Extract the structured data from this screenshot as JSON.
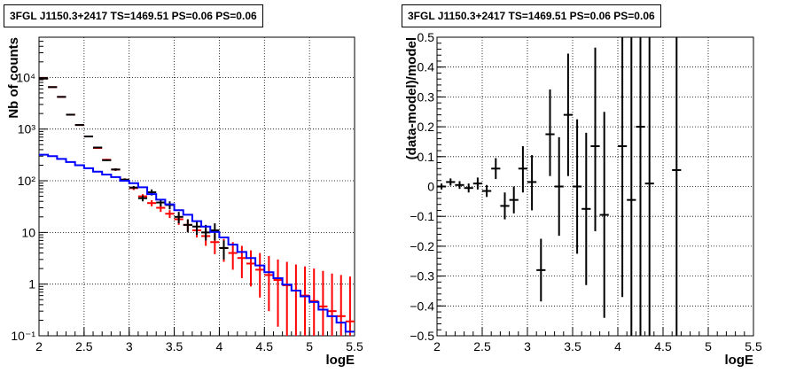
{
  "chart_data": [
    {
      "type": "line",
      "title": "3FGL J1150.3+2417 TS=1469.51 PS=0.06 PS=0.06",
      "xlabel": "logE",
      "ylabel": "Nb of counts",
      "xlim": [
        2,
        5.5
      ],
      "ylim": [
        0.1,
        60000
      ],
      "yscale": "log",
      "grid": true,
      "x_ticks": [
        "2",
        "2.5",
        "3",
        "3.5",
        "4",
        "4.5",
        "5",
        "5.5"
      ],
      "y_ticks": [
        "10⁻¹",
        "1",
        "10",
        "10²",
        "10³",
        "10⁴"
      ],
      "series": [
        {
          "color": "#ff0000",
          "style": "errorbar",
          "x": [
            2.05,
            2.15,
            2.25,
            2.35,
            2.45,
            2.55,
            2.65,
            2.75,
            2.85,
            2.95,
            3.05,
            3.15,
            3.25,
            3.35,
            3.45,
            3.55,
            3.65,
            3.75,
            3.85,
            3.95,
            4.05,
            4.15,
            4.25,
            4.35,
            4.45,
            4.55,
            4.65,
            4.75,
            4.85,
            4.95,
            5.05,
            5.15,
            5.25,
            5.35,
            5.45
          ],
          "y": [
            9500,
            6500,
            4200,
            1900,
            1200,
            720,
            430,
            255,
            165,
            105,
            72,
            50,
            37,
            30,
            23,
            18,
            14,
            11,
            8.5,
            6.5,
            5,
            4,
            3.2,
            2.5,
            1.9,
            1.5,
            1.2,
            0.95,
            0.75,
            0.6,
            0.47,
            0.37,
            0.3,
            0.24,
            0.19
          ],
          "ylo": [
            9400,
            6400,
            4130,
            1860,
            1170,
            700,
            415,
            245,
            155,
            99,
            66,
            45,
            32,
            25,
            19,
            14,
            10.5,
            8,
            5.5,
            3.8,
            2.7,
            1.9,
            1.3,
            0.9,
            0.55,
            0.3,
            0.15,
            0.1,
            0.1,
            0.1,
            0.1,
            0.1,
            0.1,
            0.1,
            0.1
          ],
          "yhi": [
            9600,
            6600,
            4270,
            1940,
            1230,
            740,
            445,
            265,
            175,
            111,
            78,
            55,
            42,
            35,
            27,
            22,
            17.5,
            14,
            11.5,
            9.5,
            7.5,
            6.5,
            5.5,
            4.5,
            4,
            3.5,
            3,
            2.7,
            2.4,
            2.2,
            2,
            1.8,
            1.6,
            1.5,
            1.4
          ]
        },
        {
          "color": "#000000",
          "style": "errorbar",
          "x": [
            2.05,
            2.15,
            2.25,
            2.35,
            2.45,
            2.55,
            2.65,
            2.75,
            2.85,
            2.95,
            3.05,
            3.15,
            3.25,
            3.35,
            3.45,
            3.55,
            3.65,
            3.75,
            3.85,
            3.95,
            4.05
          ],
          "y": [
            9500,
            6500,
            4200,
            1900,
            1200,
            720,
            440,
            250,
            165,
            105,
            74,
            46,
            60,
            38,
            34,
            20,
            14,
            13,
            10,
            11,
            5
          ],
          "ylo": [
            9400,
            6420,
            4140,
            1860,
            1170,
            700,
            425,
            242,
            157,
            99,
            69,
            40,
            52,
            32,
            28,
            15,
            10,
            9,
            7,
            7,
            3
          ],
          "yhi": [
            9600,
            6580,
            4260,
            1940,
            1230,
            740,
            455,
            258,
            173,
            111,
            79,
            52,
            68,
            44,
            40,
            25,
            18,
            17,
            14,
            15,
            7
          ]
        },
        {
          "color": "#0000ff",
          "style": "step",
          "x": [
            2.0,
            2.1,
            2.2,
            2.3,
            2.4,
            2.5,
            2.6,
            2.7,
            2.8,
            2.9,
            3.0,
            3.1,
            3.2,
            3.3,
            3.4,
            3.5,
            3.6,
            3.7,
            3.8,
            3.9,
            4.0,
            4.1,
            4.2,
            4.3,
            4.4,
            4.5,
            4.6,
            4.7,
            4.8,
            4.9,
            5.0,
            5.1,
            5.2,
            5.3,
            5.4
          ],
          "y": [
            320,
            300,
            265,
            230,
            200,
            175,
            150,
            132,
            118,
            100,
            90,
            75,
            55,
            43,
            35,
            27,
            22,
            16.5,
            13,
            10.2,
            8,
            5.8,
            4.2,
            3.2,
            2.3,
            1.7,
            1.3,
            0.98,
            0.75,
            0.58,
            0.45,
            0.32,
            0.24,
            0.18,
            0.12
          ]
        }
      ]
    },
    {
      "type": "scatter",
      "title": "3FGL J1150.3+2417 TS=1469.51 PS=0.06 PS=0.06",
      "xlabel": "logE",
      "ylabel": "(data-model)/model",
      "xlim": [
        2,
        5.5
      ],
      "ylim": [
        -0.5,
        0.5
      ],
      "grid": true,
      "x_ticks": [
        "2",
        "2.5",
        "3",
        "3.5",
        "4",
        "4.5",
        "5",
        "5.5"
      ],
      "y_ticks": [
        "−0.5",
        "−0.4",
        "−0.3",
        "−0.2",
        "−0.1",
        "0",
        "0.1",
        "0.2",
        "0.3",
        "0.4",
        "0.5"
      ],
      "series": [
        {
          "color": "#000000",
          "style": "errorbar",
          "x": [
            2.05,
            2.15,
            2.25,
            2.35,
            2.45,
            2.55,
            2.65,
            2.75,
            2.85,
            2.95,
            3.05,
            3.15,
            3.25,
            3.35,
            3.45,
            3.55,
            3.65,
            3.75,
            3.85,
            4.05,
            4.15,
            4.25,
            4.35,
            4.65
          ],
          "y": [
            0.0,
            0.015,
            0.005,
            -0.005,
            0.01,
            -0.015,
            0.06,
            -0.065,
            -0.045,
            0.06,
            0.015,
            -0.28,
            0.175,
            0.0,
            0.24,
            0.0,
            -0.075,
            0.135,
            -0.095,
            0.135,
            -0.045,
            0.2,
            0.01,
            0.055
          ],
          "ylo": [
            -0.01,
            0.003,
            -0.008,
            -0.02,
            -0.01,
            -0.035,
            0.025,
            -0.11,
            -0.09,
            -0.02,
            -0.08,
            -0.385,
            0.035,
            -0.165,
            0.035,
            -0.225,
            -0.33,
            -0.15,
            -0.44,
            -0.37,
            -0.5,
            -0.5,
            -0.5,
            -0.5
          ],
          "yhi": [
            0.01,
            0.027,
            0.018,
            0.01,
            0.03,
            0.005,
            0.095,
            -0.02,
            0.0,
            0.135,
            0.105,
            -0.175,
            0.325,
            0.165,
            0.445,
            0.225,
            0.18,
            0.465,
            0.25,
            0.5,
            0.5,
            0.5,
            0.5,
            0.5
          ]
        }
      ]
    }
  ]
}
